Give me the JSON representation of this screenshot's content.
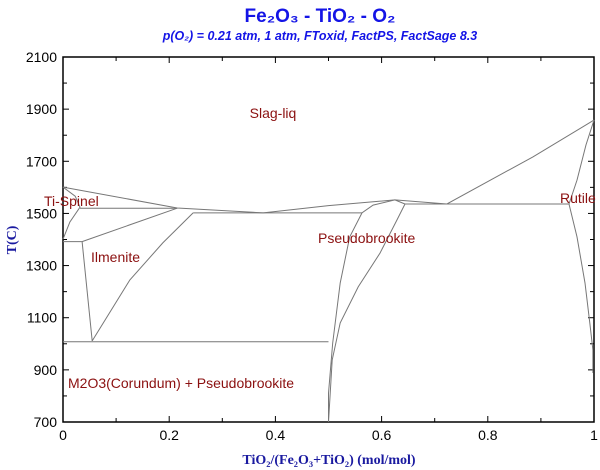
{
  "chart_data": {
    "type": "line",
    "title": "Fe₂O₃ - TiO₂ - O₂",
    "subtitle": "p(O₂) = 0.21 atm, 1 atm, FToxid, FactPS, FactSage 8.3",
    "xlabel": "TiO₂/(Fe₂O₃+TiO₂) (mol/mol)",
    "ylabel": "T(C)",
    "xlim": [
      0,
      1
    ],
    "ylim": [
      700,
      2100
    ],
    "xticks": [
      "0",
      "0.2",
      "0.4",
      "0.6",
      "0.8",
      "1"
    ],
    "yticks": [
      "700",
      "900",
      "1100",
      "1300",
      "1500",
      "1700",
      "1900",
      "2100"
    ],
    "grid": false,
    "line_color": "#777777",
    "label_color": "#8b1010",
    "title_color": "#1414e6",
    "region_labels": [
      "Slag-liq",
      "Ti-Spinel",
      "Ilmenite",
      "Pseudobrookite",
      "Rutile",
      "M2O3(Corundum) + Pseudobrookite"
    ],
    "boundaries": [
      {
        "points": [
          [
            0,
            1601
          ],
          [
            0.215,
            1521
          ],
          [
            0.377,
            1502
          ],
          [
            0.5,
            1530
          ],
          [
            0.625,
            1552
          ],
          [
            0.723,
            1536
          ],
          [
            0.885,
            1717
          ],
          [
            1,
            1858
          ]
        ]
      },
      {
        "points": [
          [
            0,
            1601
          ],
          [
            0.023,
            1566
          ],
          [
            0.032,
            1524
          ],
          [
            0.013,
            1467
          ],
          [
            0,
            1401
          ]
        ]
      },
      {
        "points": [
          [
            0.032,
            1520
          ],
          [
            0.215,
            1520
          ]
        ]
      },
      {
        "points": [
          [
            0.245,
            1502
          ],
          [
            0.563,
            1502
          ]
        ]
      },
      {
        "points": [
          [
            0.644,
            1536
          ],
          [
            0.953,
            1536
          ]
        ]
      },
      {
        "points": [
          [
            0,
            1392
          ],
          [
            0.036,
            1392
          ]
        ]
      },
      {
        "points": [
          [
            0,
            1008
          ],
          [
            0.5,
            1008
          ]
        ]
      },
      {
        "points": [
          [
            0.036,
            1392
          ],
          [
            0.055,
            1011
          ]
        ]
      },
      {
        "points": [
          [
            0.036,
            1392
          ],
          [
            0.215,
            1520
          ]
        ]
      },
      {
        "points": [
          [
            0.055,
            1011
          ],
          [
            0.126,
            1245
          ],
          [
            0.188,
            1387
          ],
          [
            0.245,
            1502
          ]
        ]
      },
      {
        "points": [
          [
            0.5,
            700
          ],
          [
            0.5,
            811
          ],
          [
            0.508,
            1003
          ],
          [
            0.522,
            1233
          ],
          [
            0.54,
            1410
          ],
          [
            0.563,
            1502
          ],
          [
            0.584,
            1532
          ],
          [
            0.625,
            1552
          ]
        ]
      },
      {
        "points": [
          [
            0.5,
            700
          ],
          [
            0.507,
            938
          ],
          [
            0.522,
            1080
          ],
          [
            0.556,
            1218
          ],
          [
            0.597,
            1348
          ],
          [
            0.629,
            1475
          ],
          [
            0.644,
            1536
          ],
          [
            0.625,
            1552
          ]
        ]
      },
      {
        "points": [
          [
            0.953,
            1536
          ],
          [
            0.968,
            1410
          ],
          [
            0.983,
            1233
          ],
          [
            0.992,
            1080
          ],
          [
            0.998,
            976
          ],
          [
            0.998,
            888
          ]
        ]
      },
      {
        "points": [
          [
            1,
            1858
          ],
          [
            0.985,
            1763
          ],
          [
            0.968,
            1628
          ],
          [
            0.953,
            1536
          ]
        ]
      }
    ]
  }
}
